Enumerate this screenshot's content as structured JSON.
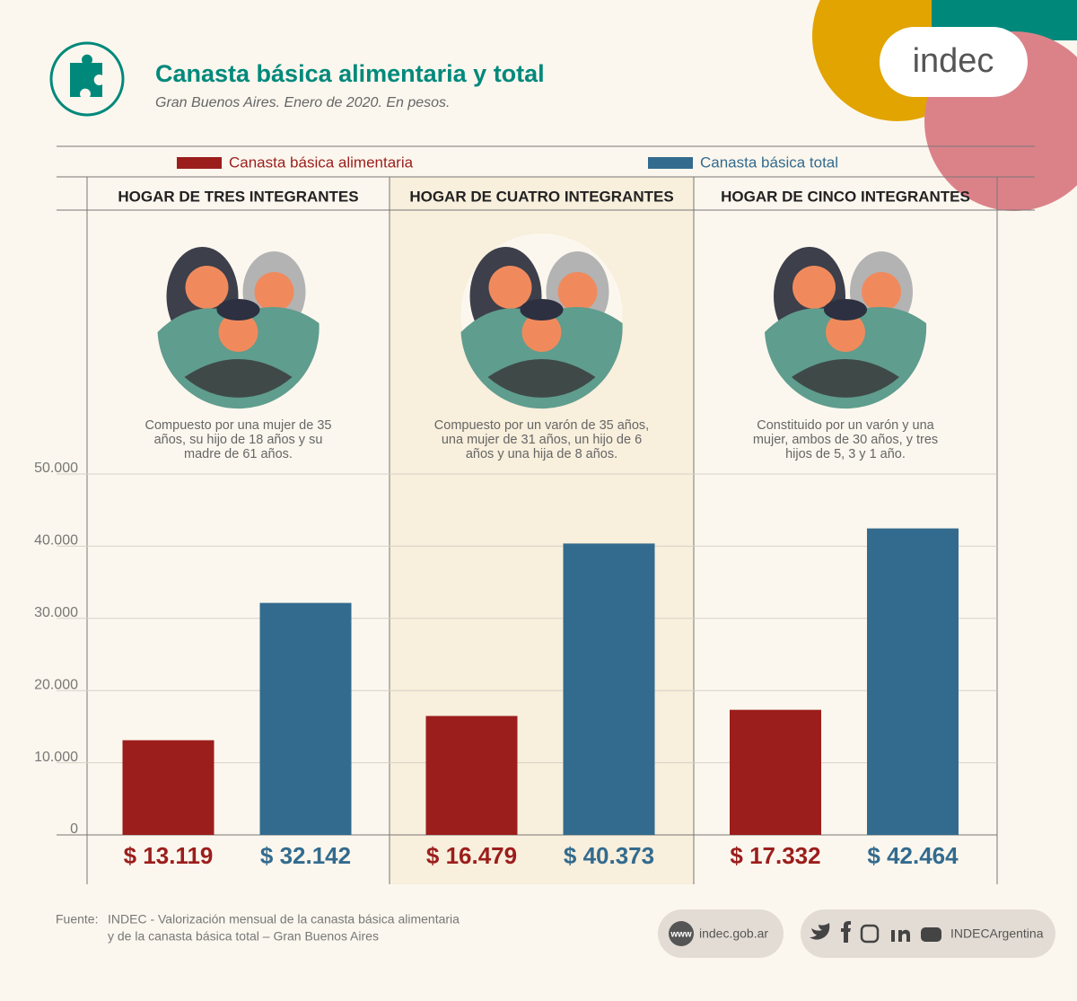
{
  "header": {
    "title": "Canasta básica alimentaria y total",
    "subtitle": "Gran Buenos Aires. Enero de 2020. En pesos.",
    "logo": "indec"
  },
  "chart_data": {
    "type": "bar",
    "categories": [
      "HOGAR DE TRES INTEGRANTES",
      "HOGAR DE CUATRO INTEGRANTES",
      "HOGAR DE CINCO INTEGRANTES"
    ],
    "series": [
      {
        "name": "Canasta básica alimentaria",
        "color": "#9b1e1c",
        "values": [
          13119,
          16479,
          17332
        ],
        "value_labels": [
          "$ 13.119",
          "$ 16.479",
          "$ 17.332"
        ]
      },
      {
        "name": "Canasta básica total",
        "color": "#336b8e",
        "values": [
          32142,
          40373,
          42464
        ],
        "value_labels": [
          "$ 32.142",
          "$ 40.373",
          "$ 42.464"
        ]
      }
    ],
    "ylim": [
      0,
      50000
    ],
    "yticks": [
      0,
      {
        "value": 10000,
        "label": "10.000"
      },
      {
        "value": 20000,
        "label": "20.000"
      },
      {
        "value": 30000,
        "label": "30.000"
      },
      {
        "value": 40000,
        "label": "40.000"
      },
      {
        "value": 50000,
        "label": "50.000"
      }
    ],
    "grid": true,
    "descriptions": [
      [
        "Compuesto por una mujer de 35",
        "años, su hijo de 18 años y su",
        "madre de 61 años."
      ],
      [
        "Compuesto por un varón de 35 años,",
        "una mujer de 31 años, un hijo de 6",
        "años y una hija de 8 años."
      ],
      [
        "Constituido por un varón y una",
        "mujer, ambos de 30 años, y tres",
        "hijos de 5, 3 y 1 año."
      ]
    ]
  },
  "footer": {
    "source_label": "Fuente:",
    "source_lines": [
      "INDEC - Valorización mensual de la canasta básica alimentaria",
      "y de la canasta básica total – Gran Buenos Aires"
    ],
    "web_icon": "www",
    "website": "indec.gob.ar",
    "social": "INDECArgentina"
  }
}
